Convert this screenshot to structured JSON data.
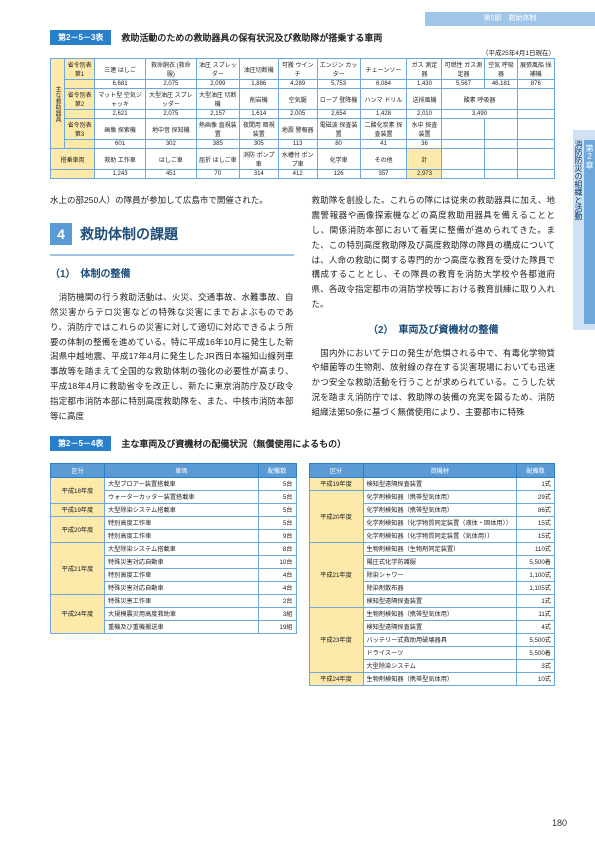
{
  "topbar": "第5節　救助体制",
  "sidetab": {
    "chapter": "第2章",
    "text": "消防防災の組織と活動"
  },
  "pagenum": "180",
  "table253": {
    "badge": "第2－5－3表",
    "title": "救助活動のための救助器具の保有状況及び救助隊が搭乗する車両",
    "note": "（平成25年4月1日現在）",
    "vhead": "主な救助器具",
    "rows": [
      {
        "h": "省令別表\n第1",
        "c": [
          "三連\nはしご",
          "救命胴衣\n(救命服)",
          "油圧\nスプレッダー",
          "油圧切断機",
          "可搬\nウインチ",
          "エンジン\nカッター",
          "チェーンソー",
          "ガス\n測定器",
          "可燃性\nガス測定器",
          "空気\n呼吸器",
          "展張風船\n採補機"
        ]
      },
      {
        "v": [
          "6,681",
          "2,075",
          "2,099",
          "1,886",
          "4,289",
          "5,753",
          "6,084",
          "1,430",
          "5,567",
          "46,181",
          "876"
        ]
      },
      {
        "h": "省令別表\n第2",
        "c": [
          "マット型\n空気ジャッキ",
          "大型油圧\nスプレッダー",
          "大型油圧\n切断機",
          "削岩機",
          "空気鋸",
          "ロープ\n登降機",
          "ハンマ\nドリル",
          "送排風機",
          "酸素\n呼吸器",
          "",
          ""
        ]
      },
      {
        "v": [
          "2,621",
          "2,075",
          "2,157",
          "1,614",
          "2,005",
          "2,654",
          "1,428",
          "2,010",
          "3,490",
          "",
          ""
        ]
      },
      {
        "h": "省令別表\n第3",
        "c": [
          "画像\n探索機",
          "地中音\n探知機",
          "熱画像\n直視装置",
          "夜間用\n暗視装置",
          "地震\n警報器",
          "電磁波\n探査装置",
          "二酸化炭素\n探査装置",
          "水中\n探査装置",
          "",
          "",
          ""
        ]
      },
      {
        "v": [
          "601",
          "302",
          "385",
          "305",
          "113",
          "80",
          "41",
          "36",
          "",
          "",
          ""
        ]
      },
      {
        "h2": "搭乗車両",
        "c": [
          "救助\n工作車",
          "はしご車",
          "屈折\nはしご車",
          "消防\nポンプ車",
          "水槽付\nポンプ車",
          "化学車",
          "その他",
          "計",
          "",
          "",
          ""
        ]
      },
      {
        "v": [
          "1,243",
          "451",
          "70",
          "314",
          "412",
          "126",
          "357",
          "2,973",
          "",
          "",
          ""
        ]
      }
    ]
  },
  "leftcol": {
    "intro": "水上の部250人）の隊員が参加して広島市で開催された。",
    "sec_num": "4",
    "sec_title": "救助体制の課題",
    "sub1": "（1）　体制の整備",
    "body1": "　消防機関の行う救助活動は、火災、交通事故、水難事故、自然災害からテロ災害などの特殊な災害にまでおよぶものであり、消防庁ではこれらの災害に対して適切に対応できるよう所要の体制の整備を進めている。特に平成16年10月に発生した新潟県中越地震、平成17年4月に発生したJR西日本福知山線列車事故等を踏まえて全国的な救助体制の強化の必要性が高まり、平成18年4月に救助省令を改正し、新たに東京消防庁及び政令指定都市消防本部に特別高度救助隊を、また、中核市消防本部等に高度"
  },
  "rightcol": {
    "body1": "救助隊を創設した。これらの隊には従来の救助器具に加え、地震警報器や画像探索機などの高度救助用器具を備えることとし、関係消防本部において着実に整備が進められてきた。また、この特別高度救助隊及び高度救助隊の隊員の構成については、人命の救助に関する専門的かつ高度な教育を受けた隊員で構成することとし、その隊員の教育を消防大学校や各都道府県、各政令指定都市の消防学校等における教育訓練に取り入れた。",
    "sub2": "（2）　車両及び資機材の整備",
    "body2": "　国内外においてテロの発生が危惧される中で、有毒化学物質や細菌等の生物剤、放射線の存在する災害現場においても迅速かつ安全な救助活動を行うことが求められている。こうした状況を踏まえ消防庁では、救助隊の装備の充実を図るため、消防組織法第50条に基づく無償使用により、主要都市に特殊"
  },
  "table254": {
    "badge": "第2－5－4表",
    "title": "主な車両及び資機材の配備状況（無償使用によるもの）",
    "col_kubun": "区分",
    "left": {
      "headers": [
        "車両",
        "配備数"
      ],
      "rows": [
        [
          "平成18年度",
          "大型ブロアー装置搭載車",
          "5台"
        ],
        [
          "",
          "ウォーターカッター装置搭載車",
          "5台"
        ],
        [
          "平成19年度",
          "大型除染システム搭載車",
          "5台"
        ],
        [
          "平成20年度",
          "特別高度工作車",
          "5台"
        ],
        [
          "",
          "特別高度工作車",
          "9台"
        ],
        [
          "平成21年度",
          "大型除染システム搭載車",
          "8台"
        ],
        [
          "",
          "特殊災害対応自動車",
          "10台"
        ],
        [
          "",
          "特別高度工作車",
          "4台"
        ],
        [
          "",
          "特殊災害対応自動車",
          "4台"
        ],
        [
          "平成24年度",
          "特殊災害工作車",
          "2台"
        ],
        [
          "",
          "大規模震災用高度救助車",
          "3組"
        ],
        [
          "",
          "重機及び重機搬送車",
          "19組"
        ]
      ]
    },
    "right": {
      "headers": [
        "資機材",
        "配備数"
      ],
      "rows": [
        [
          "平成19年度",
          "検知型遠隔探査装置",
          "1式"
        ],
        [
          "平成20年度",
          "化学剤検知器（携帯型気体用）",
          "29式"
        ],
        [
          "",
          "化学剤検知器（携帯型気体用）",
          "86式"
        ],
        [
          "",
          "化学剤検知器（化学物質同定装置（液体・固体用））",
          "15式"
        ],
        [
          "",
          "化学剤検知器（化学物質同定装置（気体用））",
          "15式"
        ],
        [
          "平成21年度",
          "生物剤検知器（生物剤同定装置）",
          "110式"
        ],
        [
          "",
          "陽圧式化学防護服",
          "5,500着"
        ],
        [
          "",
          "除染シャワー",
          "1,100式"
        ],
        [
          "",
          "除染剤散布器",
          "1,105式"
        ],
        [
          "",
          "検知型遠隔探査装置",
          "1式"
        ],
        [
          "平成23年度",
          "生物剤検知器（携帯型気体用）",
          "11式"
        ],
        [
          "",
          "検知型遠隔探査装置",
          "4式"
        ],
        [
          "",
          "バッテリー式救助用破壊器具",
          "5,500式"
        ],
        [
          "",
          "ドライスーツ",
          "5,500着"
        ],
        [
          "",
          "大型除染システム",
          "3式"
        ],
        [
          "平成24年度",
          "生物剤検知器（携帯型気体用）",
          "10式"
        ]
      ]
    }
  }
}
